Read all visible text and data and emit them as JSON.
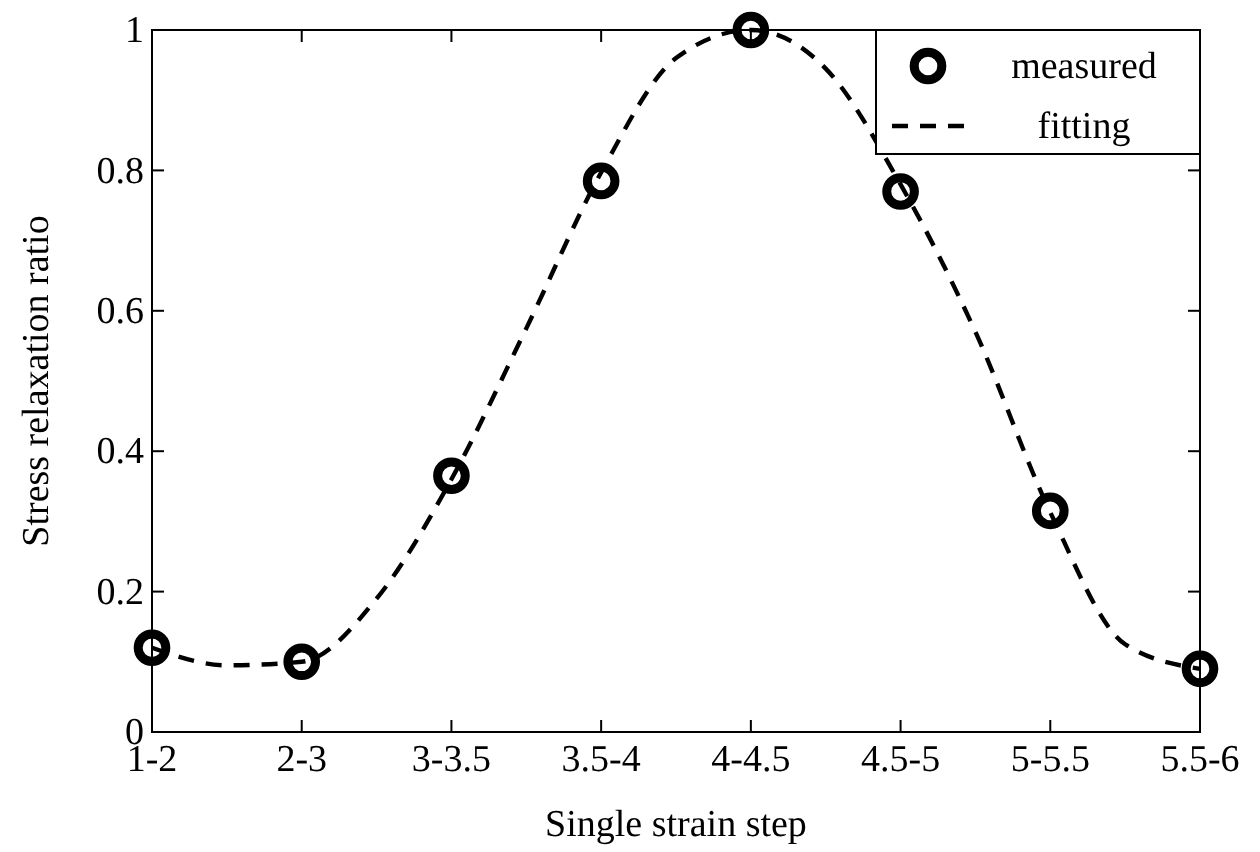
{
  "chart_data": {
    "type": "scatter",
    "xlabel": "Single strain step",
    "ylabel": "Stress relaxation ratio",
    "categories": [
      "1-2",
      null,
      "2-3",
      null,
      "3-3.5",
      null,
      "3.5-4",
      null,
      "4-4.5",
      null,
      "4.5-5",
      null,
      "5-5.5",
      null,
      "5.5-6"
    ],
    "ylim": [
      0,
      1
    ],
    "yticks": [
      0,
      0.2,
      0.4,
      0.6,
      0.8,
      1
    ],
    "grid": false,
    "legend": "top right",
    "series": [
      {
        "name": "measured",
        "marker": "circle",
        "color": "#000000",
        "values": [
          0.12,
          null,
          0.1,
          null,
          0.365,
          null,
          0.785,
          null,
          1.0,
          null,
          0.77,
          null,
          0.315,
          null,
          0.09
        ]
      },
      {
        "name": "fitting",
        "type": "line",
        "line_style": "dashed",
        "marker": "none",
        "color": "#000000",
        "values": [
          0.12,
          0.095,
          0.1,
          0.19,
          0.36,
          0.575,
          0.797,
          0.96,
          1.0,
          0.945,
          0.78,
          0.57,
          0.313,
          0.125,
          0.09
        ]
      }
    ]
  }
}
